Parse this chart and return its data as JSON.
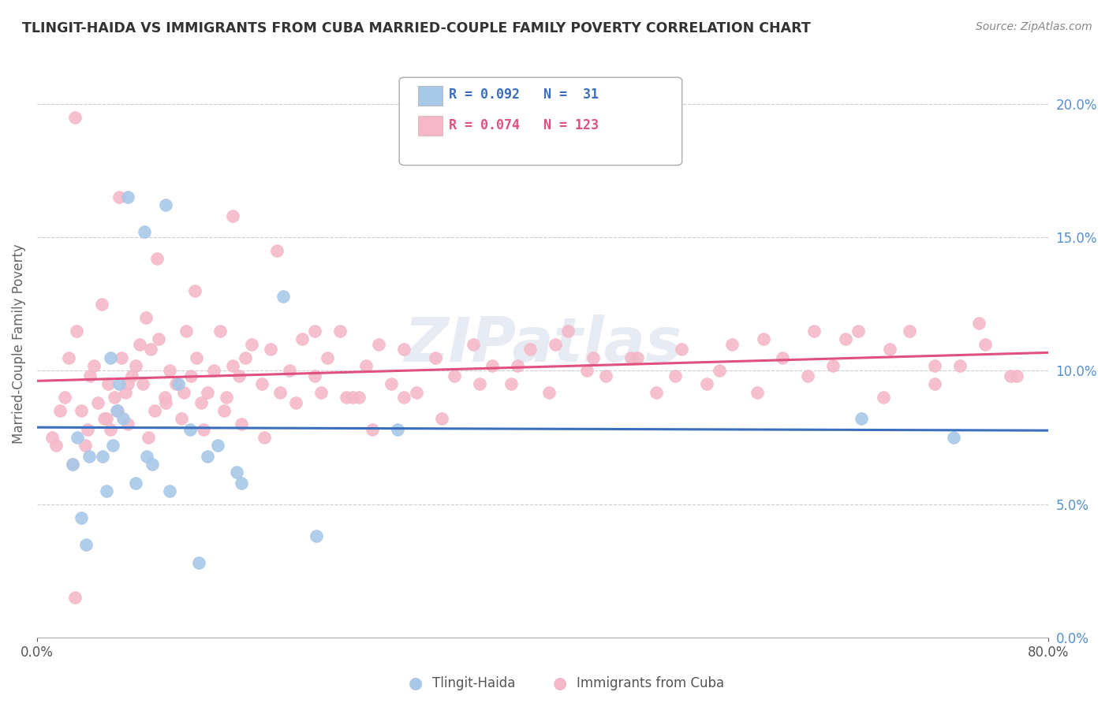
{
  "title": "TLINGIT-HAIDA VS IMMIGRANTS FROM CUBA MARRIED-COUPLE FAMILY POVERTY CORRELATION CHART",
  "source": "Source: ZipAtlas.com",
  "ylabel": "Married-Couple Family Poverty",
  "legend_label1": "Tlingit-Haida",
  "legend_label2": "Immigrants from Cuba",
  "R1": 0.092,
  "N1": 31,
  "R2": 0.074,
  "N2": 123,
  "color_blue": "#a8c8e8",
  "color_pink": "#f4b8c8",
  "line_color_blue": "#3a6fbf",
  "line_color_pink": "#e05080",
  "xlim": [
    0.0,
    80.0
  ],
  "ylim": [
    0.0,
    22.0
  ],
  "yticks": [
    0.0,
    5.0,
    10.0,
    15.0,
    20.0
  ],
  "watermark": "ZIPatlas",
  "tlingit_x": [
    3.5,
    4.1,
    5.2,
    5.5,
    5.8,
    6.0,
    6.3,
    6.5,
    6.8,
    7.2,
    7.8,
    8.5,
    8.7,
    9.1,
    10.2,
    10.5,
    11.2,
    12.1,
    12.8,
    13.5,
    14.3,
    15.8,
    16.2,
    19.5,
    22.1,
    28.5,
    2.8,
    3.2,
    3.9,
    65.2,
    72.5
  ],
  "tlingit_y": [
    4.5,
    6.8,
    6.8,
    5.5,
    10.5,
    7.2,
    8.5,
    9.5,
    8.2,
    16.5,
    5.8,
    15.2,
    6.8,
    6.5,
    16.2,
    5.5,
    9.5,
    7.8,
    2.8,
    6.8,
    7.2,
    6.2,
    5.8,
    12.8,
    3.8,
    7.8,
    6.5,
    7.5,
    3.5,
    8.2,
    7.5
  ],
  "cuba_x": [
    1.2,
    1.5,
    1.8,
    2.2,
    2.5,
    2.8,
    3.0,
    3.1,
    3.5,
    3.8,
    4.0,
    4.2,
    4.5,
    4.8,
    5.1,
    5.3,
    5.5,
    5.6,
    5.8,
    6.1,
    6.4,
    6.5,
    6.7,
    7.0,
    7.2,
    7.2,
    7.5,
    7.8,
    8.1,
    8.4,
    8.6,
    8.8,
    9.0,
    9.3,
    9.5,
    9.6,
    10.1,
    10.2,
    10.5,
    11.0,
    11.4,
    11.6,
    11.8,
    12.2,
    12.5,
    12.6,
    13.0,
    13.2,
    13.5,
    14.0,
    14.5,
    14.8,
    15.0,
    15.5,
    15.5,
    16.0,
    16.2,
    16.5,
    17.0,
    17.8,
    18.0,
    18.5,
    19.0,
    19.2,
    20.0,
    20.5,
    21.0,
    22.0,
    22.0,
    22.5,
    23.0,
    24.0,
    24.5,
    25.0,
    25.5,
    26.0,
    26.5,
    27.0,
    28.0,
    29.0,
    29.0,
    30.0,
    31.5,
    32.0,
    33.0,
    34.5,
    35.0,
    36.0,
    37.5,
    38.0,
    39.0,
    40.5,
    41.0,
    42.0,
    43.5,
    44.0,
    45.0,
    47.0,
    47.5,
    49.0,
    50.5,
    51.0,
    53.0,
    54.0,
    55.0,
    57.0,
    57.5,
    59.0,
    61.0,
    61.5,
    63.0,
    64.0,
    65.0,
    67.0,
    67.5,
    69.0,
    71.0,
    71.0,
    73.0,
    74.5,
    75.0,
    77.0,
    77.5,
    3.0
  ],
  "cuba_y": [
    7.5,
    7.2,
    8.5,
    9.0,
    10.5,
    6.5,
    19.5,
    11.5,
    8.5,
    7.2,
    7.8,
    9.8,
    10.2,
    8.8,
    12.5,
    8.2,
    8.2,
    9.5,
    7.8,
    9.0,
    8.5,
    16.5,
    10.5,
    9.2,
    8.0,
    9.5,
    9.8,
    10.2,
    11.0,
    9.5,
    12.0,
    7.5,
    10.8,
    8.5,
    14.2,
    11.2,
    9.0,
    8.8,
    10.0,
    9.5,
    8.2,
    9.2,
    11.5,
    9.8,
    13.0,
    10.5,
    8.8,
    7.8,
    9.2,
    10.0,
    11.5,
    8.5,
    9.0,
    10.2,
    15.8,
    9.8,
    8.0,
    10.5,
    11.0,
    9.5,
    7.5,
    10.8,
    14.5,
    9.2,
    10.0,
    8.8,
    11.2,
    9.8,
    11.5,
    9.2,
    10.5,
    11.5,
    9.0,
    9.0,
    9.0,
    10.2,
    7.8,
    11.0,
    9.5,
    10.8,
    9.0,
    9.2,
    10.5,
    8.2,
    9.8,
    11.0,
    9.5,
    10.2,
    9.5,
    10.2,
    10.8,
    9.2,
    11.0,
    11.5,
    10.0,
    10.5,
    9.8,
    10.5,
    10.5,
    9.2,
    9.8,
    10.8,
    9.5,
    10.0,
    11.0,
    9.2,
    11.2,
    10.5,
    9.8,
    11.5,
    10.2,
    11.2,
    11.5,
    9.0,
    10.8,
    11.5,
    9.5,
    10.2,
    10.2,
    11.8,
    11.0,
    9.8,
    9.8,
    1.5
  ]
}
